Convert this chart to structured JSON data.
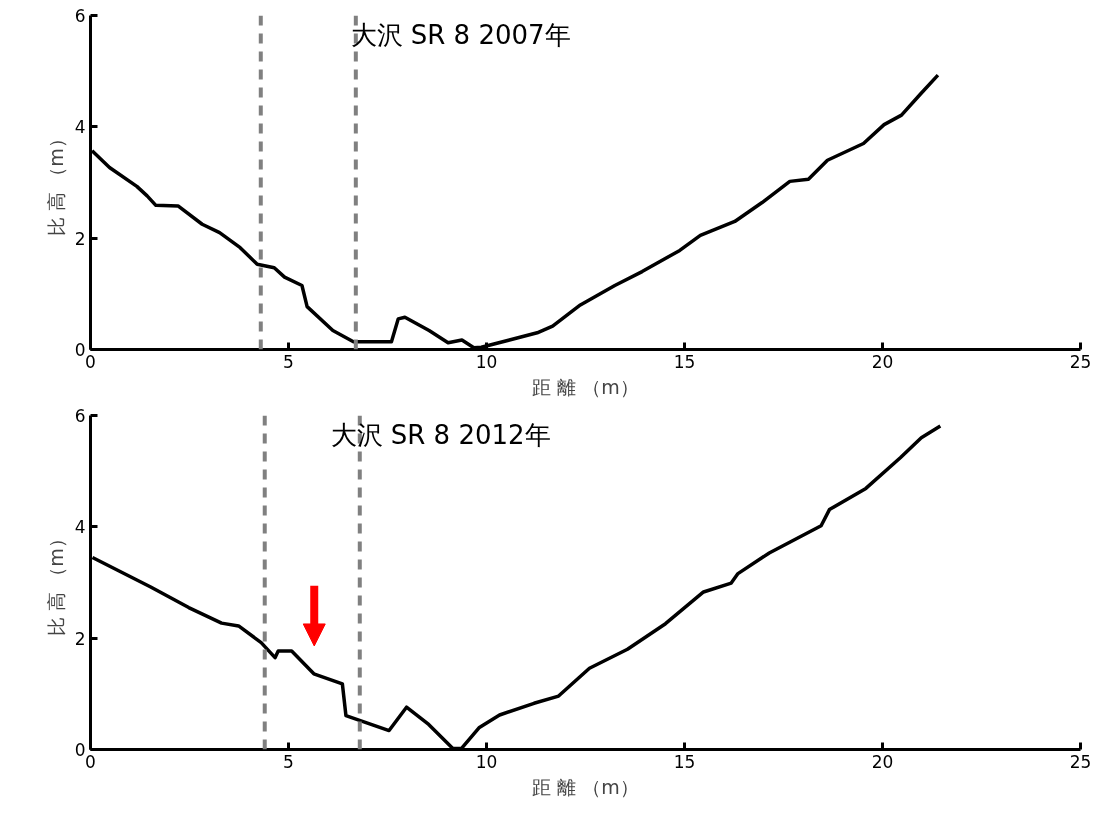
{
  "chart_data": [
    {
      "type": "line",
      "title": "大沢 SR 8  2007年",
      "xlabel": "距 離 （m）",
      "ylabel": "比 高 （m）",
      "xlim": [
        0,
        25
      ],
      "ylim": [
        0,
        6
      ],
      "xticks": [
        0,
        5,
        10,
        15,
        20,
        25
      ],
      "yticks": [
        0,
        2,
        4,
        6
      ],
      "grid": false,
      "marker": "none",
      "line_style": "solid",
      "series": [
        {
          "color": "#000000",
          "x": [
            0.04,
            0.48,
            1.17,
            1.43,
            1.65,
            2.21,
            2.82,
            3.26,
            3.78,
            4.21,
            4.64,
            4.9,
            5.34,
            5.47,
            6.12,
            6.64,
            7.6,
            7.77,
            7.94,
            8.55,
            9.03,
            9.38,
            9.68,
            9.87,
            11.28,
            11.67,
            12.37,
            13.24,
            13.93,
            14.88,
            15.4,
            16.27,
            16.96,
            17.66,
            18.13,
            18.61,
            19.52,
            20.04,
            20.48,
            20.96,
            21.4
          ],
          "values": [
            3.57,
            3.27,
            2.93,
            2.76,
            2.59,
            2.58,
            2.25,
            2.1,
            1.83,
            1.53,
            1.47,
            1.3,
            1.15,
            0.77,
            0.34,
            0.14,
            0.14,
            0.55,
            0.58,
            0.34,
            0.12,
            0.17,
            0.03,
            0.04,
            0.3,
            0.42,
            0.8,
            1.15,
            1.4,
            1.78,
            2.05,
            2.3,
            2.64,
            3.02,
            3.06,
            3.4,
            3.7,
            4.04,
            4.21,
            4.59,
            4.93
          ]
        }
      ],
      "ref_lines": [
        {
          "axis": "x",
          "value": 4.3,
          "color": "#808080",
          "line_style": "dashed"
        },
        {
          "axis": "x",
          "value": 6.7,
          "color": "#808080",
          "line_style": "dashed"
        }
      ]
    },
    {
      "type": "line",
      "title": "大沢  SR 8  2012年",
      "xlabel": "距 離 （m）",
      "ylabel": "比 高 （m）",
      "xlim": [
        0,
        25
      ],
      "ylim": [
        0,
        6
      ],
      "xticks": [
        0,
        5,
        10,
        15,
        20,
        25
      ],
      "yticks": [
        0,
        2,
        4,
        6
      ],
      "grid": false,
      "marker": "none",
      "line_style": "solid",
      "series": [
        {
          "color": "#000000",
          "x": [
            0.05,
            1.52,
            2.48,
            3.31,
            3.74,
            4.31,
            4.66,
            4.74,
            5.08,
            5.64,
            6.36,
            6.45,
            7.54,
            7.98,
            8.54,
            9.15,
            9.37,
            9.81,
            10.33,
            11.2,
            11.82,
            12.6,
            13.56,
            14.52,
            15.48,
            16.18,
            16.35,
            17.14,
            18.45,
            18.66,
            19.58,
            20.45,
            20.98,
            21.46
          ],
          "values": [
            3.45,
            2.92,
            2.55,
            2.27,
            2.22,
            1.92,
            1.65,
            1.77,
            1.77,
            1.36,
            1.18,
            0.61,
            0.34,
            0.76,
            0.45,
            0.02,
            0.02,
            0.39,
            0.62,
            0.83,
            0.96,
            1.46,
            1.8,
            2.26,
            2.83,
            2.99,
            3.16,
            3.53,
            4.02,
            4.31,
            4.69,
            5.24,
            5.6,
            5.81
          ]
        }
      ],
      "ref_lines": [
        {
          "axis": "x",
          "value": 4.4,
          "color": "#808080",
          "line_style": "dashed"
        },
        {
          "axis": "x",
          "value": 6.8,
          "color": "#808080",
          "line_style": "dashed"
        }
      ]
    }
  ]
}
